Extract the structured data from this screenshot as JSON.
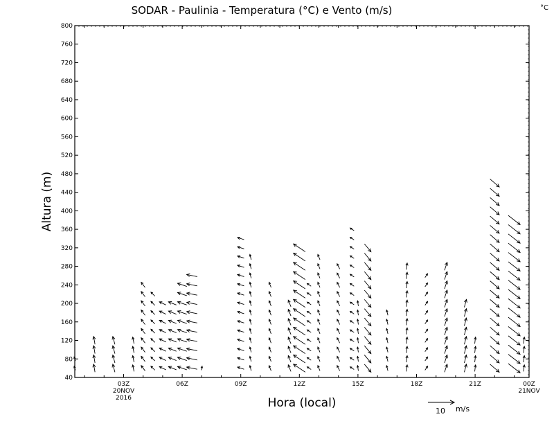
{
  "chart_data": {
    "type": "vector-field",
    "title": "SODAR - Paulinia - Temperatura (°C) e Vento (m/s)",
    "temperature_unit": "°C",
    "xlabel": "Hora (local)",
    "ylabel": "Altura (m)",
    "x_ticks": [
      {
        "hour": 3,
        "label": "03Z",
        "sub": [
          "20NOV",
          "2016"
        ]
      },
      {
        "hour": 6,
        "label": "06Z",
        "sub": []
      },
      {
        "hour": 9,
        "label": "09Z",
        "sub": []
      },
      {
        "hour": 12,
        "label": "12Z",
        "sub": []
      },
      {
        "hour": 15,
        "label": "15Z",
        "sub": []
      },
      {
        "hour": 18,
        "label": "18Z",
        "sub": []
      },
      {
        "hour": 21,
        "label": "21Z",
        "sub": []
      },
      {
        "hour": 24,
        "label": "00Z",
        "sub": [
          "21NOV"
        ]
      }
    ],
    "xlim": [
      0.5,
      24
    ],
    "ylim": [
      40,
      800
    ],
    "y_ticks": [
      40,
      80,
      120,
      160,
      200,
      240,
      280,
      320,
      360,
      400,
      440,
      480,
      520,
      560,
      600,
      640,
      680,
      720,
      760,
      800
    ],
    "grid": false,
    "reference_vector": {
      "speed": 10,
      "label": "10",
      "unit": "m/s"
    },
    "wind_profiles": [
      {
        "hour": 0.5,
        "top": 80,
        "u": -0.5,
        "v": 1.5
      },
      {
        "hour": 1.5,
        "top": 120,
        "u": -0.5,
        "v": 3.0
      },
      {
        "hour": 2.5,
        "top": 120,
        "u": -0.8,
        "v": 3.0
      },
      {
        "hour": 3.5,
        "top": 120,
        "u": -0.5,
        "v": 2.5
      },
      {
        "hour": 4.0,
        "top": 250,
        "u": -1.5,
        "v": 2.0
      },
      {
        "hour": 4.5,
        "top": 230,
        "u": -1.5,
        "v": 1.5
      },
      {
        "hour": 5.0,
        "top": 210,
        "u": -2.5,
        "v": 1.2
      },
      {
        "hour": 5.5,
        "top": 210,
        "u": -3.0,
        "v": 1.2
      },
      {
        "hour": 6.0,
        "top": 240,
        "u": -3.5,
        "v": 1.2
      },
      {
        "hour": 6.5,
        "top": 270,
        "u": -4.0,
        "v": 0.8
      },
      {
        "hour": 7.0,
        "top": 60,
        "u": 0.3,
        "v": 1.5
      },
      {
        "hour": 9.0,
        "top": 340,
        "u": -2.5,
        "v": 0.8
      },
      {
        "hour": 9.5,
        "top": 310,
        "u": -0.5,
        "v": 2.0
      },
      {
        "hour": 10.5,
        "top": 250,
        "u": -0.8,
        "v": 2.0
      },
      {
        "hour": 11.5,
        "top": 210,
        "u": -1.0,
        "v": 2.5
      },
      {
        "hour": 12.0,
        "top": 330,
        "u": -4.5,
        "v": 3.0
      },
      {
        "hour": 12.5,
        "top": 250,
        "u": -1.5,
        "v": 1.0
      },
      {
        "hour": 13.0,
        "top": 310,
        "u": -0.8,
        "v": 2.0
      },
      {
        "hour": 14.0,
        "top": 290,
        "u": -1.0,
        "v": 2.0
      },
      {
        "hour": 14.7,
        "top": 360,
        "u": -1.5,
        "v": 1.0
      },
      {
        "hour": 15.0,
        "top": 210,
        "u": -0.3,
        "v": 2.0
      },
      {
        "hour": 15.5,
        "top": 330,
        "u": 2.5,
        "v": -3.0
      },
      {
        "hour": 16.5,
        "top": 190,
        "u": -0.5,
        "v": 2.0
      },
      {
        "hour": 17.5,
        "top": 280,
        "u": 0.3,
        "v": 2.5
      },
      {
        "hour": 18.5,
        "top": 270,
        "u": 1.0,
        "v": 1.5
      },
      {
        "hour": 19.5,
        "top": 280,
        "u": 1.0,
        "v": 3.0
      },
      {
        "hour": 20.5,
        "top": 210,
        "u": 0.8,
        "v": 3.0
      },
      {
        "hour": 21.0,
        "top": 120,
        "u": 0.3,
        "v": 2.5
      },
      {
        "hour": 22.0,
        "top": 460,
        "u": 3.5,
        "v": -3.0
      },
      {
        "hour": 23.0,
        "top": 380,
        "u": 4.5,
        "v": -3.5
      },
      {
        "hour": 23.5,
        "top": 120,
        "u": 0.3,
        "v": 2.5
      }
    ]
  }
}
